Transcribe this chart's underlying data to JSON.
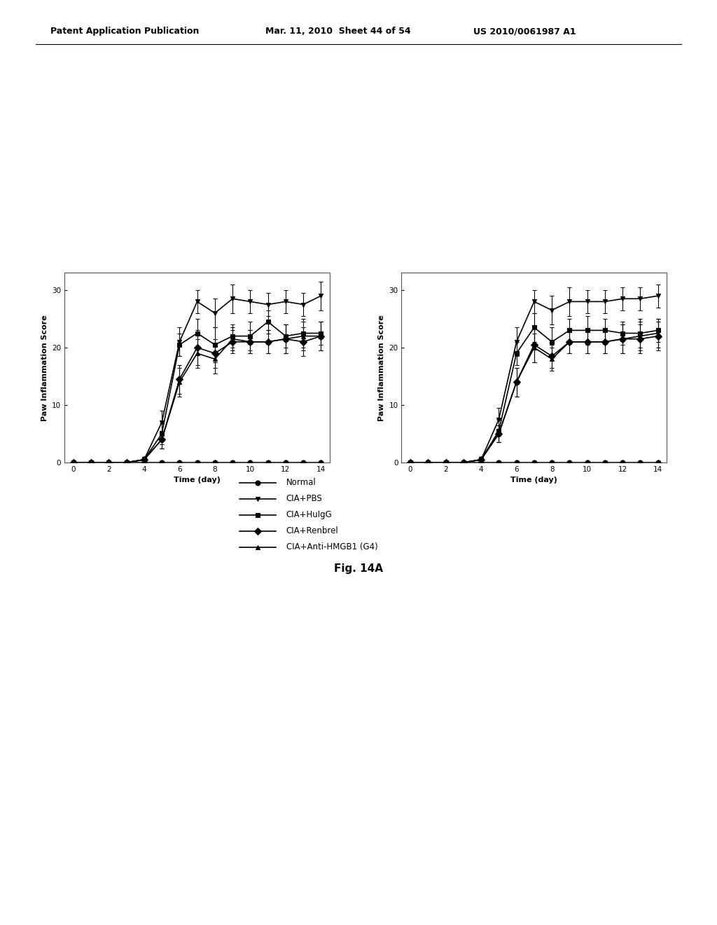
{
  "x": [
    0,
    1,
    2,
    3,
    4,
    5,
    6,
    7,
    8,
    9,
    10,
    11,
    12,
    13,
    14
  ],
  "left_series": {
    "Normal": {
      "y": [
        0,
        0,
        0,
        0,
        0,
        0,
        0,
        0,
        0,
        0,
        0,
        0,
        0,
        0,
        0
      ],
      "yerr": [
        0,
        0,
        0,
        0,
        0,
        0,
        0,
        0,
        0,
        0,
        0,
        0,
        0,
        0,
        0
      ],
      "marker": "o",
      "markersize": 5
    },
    "CIA+PBS": {
      "y": [
        0,
        0,
        0,
        0,
        0.5,
        7.0,
        21.0,
        28.0,
        26.0,
        28.5,
        28.0,
        27.5,
        28.0,
        27.5,
        29.0
      ],
      "yerr": [
        0,
        0,
        0,
        0.2,
        0.5,
        2.0,
        2.5,
        2.0,
        2.5,
        2.5,
        2.0,
        2.0,
        2.0,
        2.0,
        2.5
      ],
      "marker": "v",
      "markersize": 5
    },
    "CIA+HuIgG": {
      "y": [
        0,
        0,
        0,
        0,
        0.5,
        5.0,
        20.5,
        22.5,
        20.5,
        22.0,
        22.0,
        24.5,
        22.0,
        22.5,
        22.5
      ],
      "yerr": [
        0,
        0,
        0,
        0.3,
        0.5,
        1.8,
        2.0,
        2.5,
        3.0,
        2.0,
        2.5,
        2.0,
        2.0,
        2.5,
        2.0
      ],
      "marker": "s",
      "markersize": 5
    },
    "CIA+Renbrel": {
      "y": [
        0,
        0,
        0,
        0,
        0.5,
        4.0,
        14.5,
        20.0,
        19.0,
        21.0,
        21.0,
        21.0,
        21.5,
        21.0,
        22.0
      ],
      "yerr": [
        0,
        0,
        0,
        0.2,
        0.5,
        1.5,
        2.5,
        3.0,
        2.5,
        2.0,
        2.0,
        2.0,
        2.5,
        2.5,
        2.5
      ],
      "marker": "D",
      "markersize": 5
    },
    "CIA+Anti-HMGB1 (G4)": {
      "y": [
        0,
        0,
        0,
        0,
        0.5,
        4.0,
        14.0,
        19.0,
        18.0,
        21.5,
        21.0,
        21.0,
        21.5,
        22.0,
        22.0
      ],
      "yerr": [
        0,
        0,
        0,
        0.2,
        0.5,
        1.5,
        2.5,
        2.5,
        2.5,
        2.0,
        2.0,
        2.0,
        2.5,
        2.5,
        2.5
      ],
      "marker": "^",
      "markersize": 5
    }
  },
  "right_series": {
    "Normal": {
      "y": [
        0,
        0,
        0,
        0,
        0,
        0,
        0,
        0,
        0,
        0,
        0,
        0,
        0,
        0,
        0
      ],
      "yerr": [
        0,
        0,
        0,
        0,
        0,
        0,
        0,
        0,
        0,
        0,
        0,
        0,
        0,
        0,
        0
      ],
      "marker": "o",
      "markersize": 5
    },
    "CIA+PBS": {
      "y": [
        0,
        0,
        0,
        0,
        0.5,
        7.5,
        21.0,
        28.0,
        26.5,
        28.0,
        28.0,
        28.0,
        28.5,
        28.5,
        29.0
      ],
      "yerr": [
        0,
        0,
        0,
        0.2,
        0.5,
        2.0,
        2.5,
        2.0,
        2.5,
        2.5,
        2.0,
        2.0,
        2.0,
        2.0,
        2.0
      ],
      "marker": "v",
      "markersize": 5
    },
    "CIA+HuIgG": {
      "y": [
        0,
        0,
        0,
        0,
        0.5,
        5.5,
        19.0,
        23.5,
        21.0,
        23.0,
        23.0,
        23.0,
        22.5,
        22.5,
        23.0
      ],
      "yerr": [
        0,
        0,
        0,
        0.3,
        0.5,
        2.0,
        2.0,
        2.5,
        2.5,
        2.0,
        2.5,
        2.0,
        2.0,
        2.5,
        2.0
      ],
      "marker": "s",
      "markersize": 5
    },
    "CIA+Renbrel": {
      "y": [
        0,
        0,
        0,
        0,
        0.5,
        5.0,
        14.0,
        20.5,
        18.5,
        21.0,
        21.0,
        21.0,
        21.5,
        21.5,
        22.0
      ],
      "yerr": [
        0,
        0,
        0,
        0.3,
        0.5,
        1.5,
        2.5,
        3.0,
        2.0,
        2.0,
        2.0,
        2.0,
        2.5,
        2.5,
        2.5
      ],
      "marker": "D",
      "markersize": 5
    },
    "CIA+Anti-HMGB1 (G4)": {
      "y": [
        0,
        0,
        0,
        0,
        0.5,
        5.0,
        14.0,
        20.0,
        18.0,
        21.0,
        21.0,
        21.0,
        21.5,
        22.0,
        22.5
      ],
      "yerr": [
        0,
        0,
        0,
        0.3,
        0.5,
        1.5,
        2.5,
        2.5,
        2.0,
        2.0,
        2.0,
        2.0,
        2.5,
        2.5,
        2.5
      ],
      "marker": "^",
      "markersize": 5
    }
  },
  "xlabel": "Time (day)",
  "ylabel": "Paw Inflammation Score",
  "ylim": [
    0,
    33
  ],
  "xlim": [
    -0.5,
    14.5
  ],
  "xticks": [
    0,
    2,
    4,
    6,
    8,
    10,
    12,
    14
  ],
  "yticks": [
    0,
    10,
    20,
    30
  ],
  "figure_caption": "Fig. 14A",
  "legend_labels": [
    "Normal",
    "CIA+PBS",
    "CIA+HuIgG",
    "CIA+Renbrel",
    "CIA+Anti-HMGB1 (G4)"
  ],
  "legend_markers": [
    "o",
    "v",
    "s",
    "D",
    "^"
  ],
  "background_color": "#ffffff",
  "plot_bg_color": "#ffffff",
  "line_color": "#000000",
  "header_left": "Patent Application Publication",
  "header_mid": "Mar. 11, 2010  Sheet 44 of 54",
  "header_right": "US 2010/0061987 A1"
}
